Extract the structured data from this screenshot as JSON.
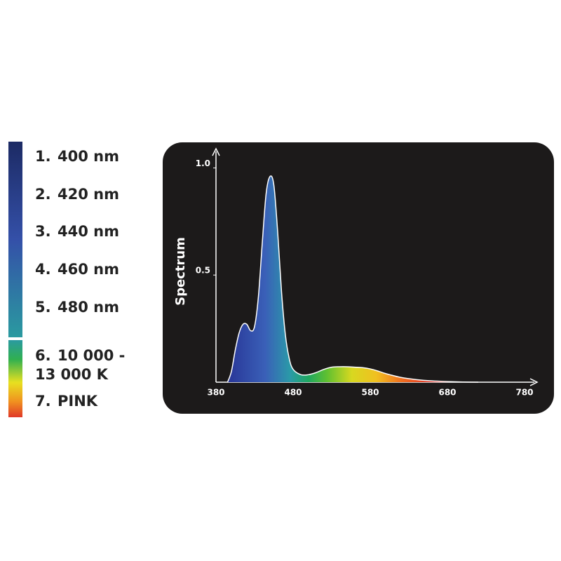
{
  "chart_data": {
    "type": "area",
    "key": [
      {
        "number": "1.",
        "lines": [
          "400 nm"
        ]
      },
      {
        "number": "2.",
        "lines": [
          "420 nm"
        ]
      },
      {
        "number": "3.",
        "lines": [
          "440 nm"
        ]
      },
      {
        "number": "4.",
        "lines": [
          "460 nm"
        ]
      },
      {
        "number": "5.",
        "lines": [
          "480 nm"
        ]
      },
      {
        "number": "6.",
        "lines": [
          "10 000 -",
          "13 000 K"
        ]
      },
      {
        "number": "7.",
        "lines": [
          "PINK"
        ]
      }
    ],
    "y_label": "Spectrum",
    "x": [
      395,
      400,
      405,
      410,
      415,
      420,
      425,
      430,
      435,
      440,
      445,
      450,
      455,
      460,
      465,
      470,
      475,
      480,
      490,
      500,
      510,
      520,
      530,
      540,
      550,
      560,
      570,
      580,
      590,
      600,
      620,
      640,
      660,
      680,
      700,
      720
    ],
    "values": [
      0,
      0.05,
      0.15,
      0.23,
      0.27,
      0.27,
      0.24,
      0.26,
      0.4,
      0.65,
      0.88,
      0.96,
      0.92,
      0.7,
      0.42,
      0.22,
      0.11,
      0.06,
      0.035,
      0.035,
      0.045,
      0.06,
      0.07,
      0.072,
      0.072,
      0.07,
      0.068,
      0.062,
      0.052,
      0.04,
      0.022,
      0.012,
      0.006,
      0.003,
      0.001,
      0
    ],
    "color": "#ffffff",
    "xlim": [
      380,
      780
    ],
    "xticks": [
      380,
      480,
      580,
      680,
      780
    ],
    "ylim": [
      0,
      1.08
    ],
    "yticks": [
      0.5,
      {
        "value": 1,
        "label": "1.0"
      }
    ]
  }
}
